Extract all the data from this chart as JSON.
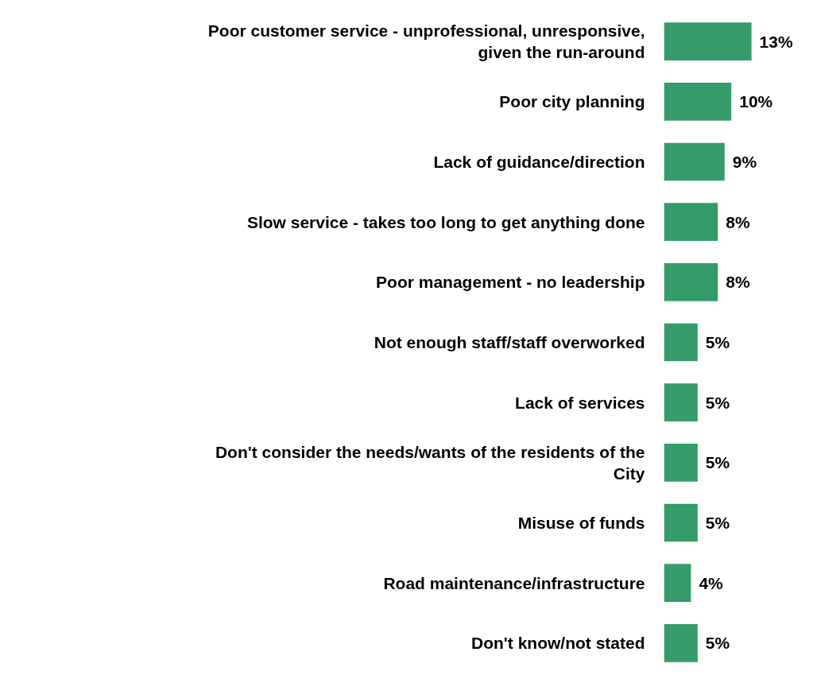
{
  "chart_data": {
    "type": "bar",
    "orientation": "horizontal",
    "categories": [
      "Poor customer service - unprofessional, unresponsive, given the run-around",
      "Poor city planning",
      "Lack of guidance/direction",
      "Slow service - takes too long to get anything done",
      "Poor management - no leadership",
      "Not enough staff/staff overworked",
      "Lack of services",
      "Don't consider the needs/wants of the residents of the City",
      "Misuse of funds",
      "Road maintenance/infrastructure",
      "Don't know/not stated"
    ],
    "values": [
      13,
      10,
      9,
      8,
      8,
      5,
      5,
      5,
      5,
      4,
      5
    ],
    "value_labels": [
      "13%",
      "10%",
      "9%",
      "8%",
      "8%",
      "5%",
      "5%",
      "5%",
      "5%",
      "4%",
      "5%"
    ],
    "color": "#359b68"
  }
}
